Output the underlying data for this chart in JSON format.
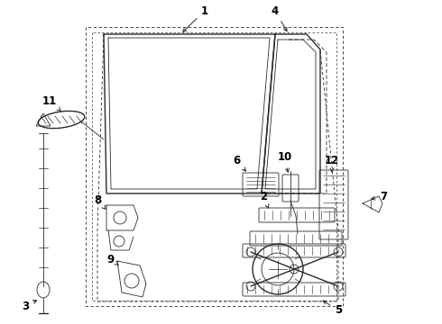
{
  "bg_color": "#ffffff",
  "line_color": "#2a2a2a",
  "label_color": "#000000",
  "lw_main": 1.0,
  "lw_thin": 0.6,
  "lw_thick": 1.4
}
